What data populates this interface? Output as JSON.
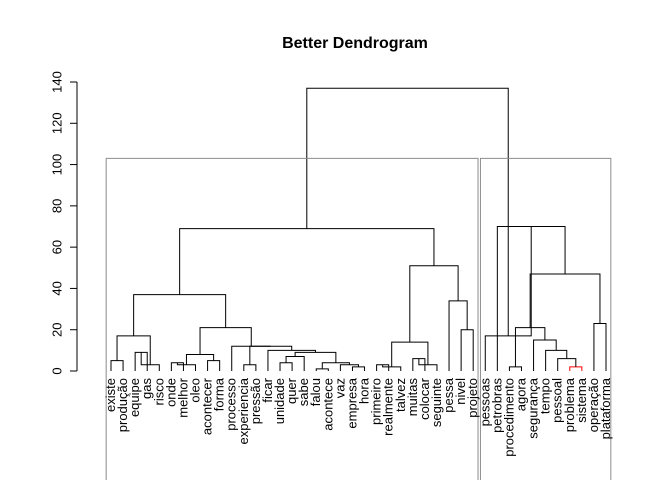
{
  "chart_data": {
    "type": "dendrogram",
    "title": "Better Dendrogram",
    "ylim": [
      0,
      140
    ],
    "yticks": [
      0,
      20,
      40,
      60,
      80,
      100,
      120,
      140
    ],
    "leaves": [
      "existe",
      "produção",
      "equipe",
      "gas",
      "risco",
      "onde",
      "melhor",
      "oleo",
      "acontecer",
      "forma",
      "processo",
      "experiencia",
      "pressão",
      "ficar",
      "unidade",
      "quer",
      "sabe",
      "falou",
      "acontece",
      "vaz",
      "empresa",
      "hora",
      "primeiro",
      "realmente",
      "talvez",
      "muitas",
      "colocar",
      "seguinte",
      "pessa",
      "nivel",
      "projeto",
      "pessoas",
      "petrobras",
      "procedimento",
      "agora",
      "segurança",
      "tempo",
      "pessoal",
      "problema",
      "sistema",
      "operação",
      "plataforma"
    ],
    "merges": [
      {
        "left": "L:0",
        "right": "L:1",
        "height": 5
      },
      {
        "left": "L:2",
        "right": "L:3",
        "height": 9
      },
      {
        "left": "L:5",
        "right": "L:6",
        "height": 4
      },
      {
        "left": "L:20",
        "right": "L:21",
        "height": 2
      },
      {
        "left": "L:25",
        "right": "L:26",
        "height": 6
      },
      {
        "left": "L:38",
        "right": "L:39",
        "height": 2,
        "color": "red"
      },
      {
        "left": "L:40",
        "right": "L:41",
        "height": 23
      },
      {
        "left": "L:33",
        "right": "L:34",
        "height": 2
      },
      {
        "left": "L:8",
        "right": "L:9",
        "height": 5
      },
      {
        "left": "L:14",
        "right": "L:15",
        "height": 4
      },
      {
        "left": "L:17",
        "right": "L:18",
        "height": 1
      },
      {
        "left": "L:22",
        "right": "L:23",
        "height": 3
      },
      {
        "left": "L:29",
        "right": "L:30",
        "height": 20
      },
      {
        "left": "M:1",
        "right": "L:4",
        "height": 3
      },
      {
        "left": "M:2",
        "right": "L:7",
        "height": 3
      },
      {
        "left": "M:3",
        "right": "L:19",
        "height": 3
      },
      {
        "left": "M:4",
        "right": "L:27",
        "height": 3
      },
      {
        "left": "L:37",
        "right": "M:5",
        "height": 6
      },
      {
        "left": "M:9",
        "right": "L:16",
        "height": 7
      },
      {
        "left": "M:10",
        "right": "M:15",
        "height": 4
      },
      {
        "left": "M:11",
        "right": "L:24",
        "height": 2
      },
      {
        "left": "M:17",
        "right": "L:36",
        "height": 10
      },
      {
        "left": "M:14",
        "right": "M:8",
        "height": 8
      },
      {
        "left": "L:28",
        "right": "M:12",
        "height": 34
      },
      {
        "left": "M:0",
        "right": "M:13",
        "height": 17
      },
      {
        "left": "L:11",
        "right": "L:12",
        "height": 3
      },
      {
        "left": "M:18",
        "right": "M:19",
        "height": 9
      },
      {
        "left": "M:21",
        "right": "L:35",
        "height": 15
      },
      {
        "left": "M:20",
        "right": "M:16",
        "height": 14
      },
      {
        "left": "M:27",
        "right": "M:7",
        "height": 21
      },
      {
        "left": "L:13",
        "right": "M:26",
        "height": 10
      },
      {
        "left": "M:25",
        "right": "M:30",
        "height": 12
      },
      {
        "left": "L:10",
        "right": "M:31",
        "height": 12
      },
      {
        "left": "M:22",
        "right": "M:32",
        "height": 21
      },
      {
        "left": "M:29",
        "right": "M:6",
        "height": 47
      },
      {
        "left": "M:28",
        "right": "M:23",
        "height": 51
      },
      {
        "left": "M:24",
        "right": "M:33",
        "height": 37
      },
      {
        "left": "L:32",
        "right": "M:34",
        "height": 70
      },
      {
        "left": "M:36",
        "right": "M:35",
        "height": 69
      },
      {
        "left": "L:31",
        "right": "M:37",
        "height": 17
      },
      {
        "left": "M:38",
        "right": "M:39",
        "height": 137
      }
    ],
    "clusters": [
      {
        "first": 0,
        "last": 30
      },
      {
        "first": 31,
        "last": 41
      }
    ],
    "cluster_border_height": 103
  }
}
